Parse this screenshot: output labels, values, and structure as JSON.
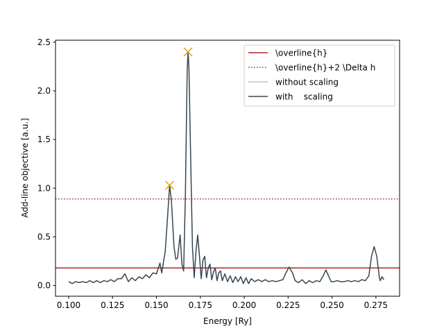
{
  "chart_data": {
    "type": "line",
    "xlabel": "Energy [Ry]",
    "ylabel": "Add-line objective [a.u.]",
    "xlim": [
      0.0925,
      0.2885
    ],
    "ylim": [
      -0.11,
      2.52
    ],
    "x_ticks": [
      0.1,
      0.125,
      0.15,
      0.175,
      0.2,
      0.225,
      0.25,
      0.275
    ],
    "x_tick_labels": [
      "0.100",
      "0.125",
      "0.150",
      "0.175",
      "0.200",
      "0.225",
      "0.250",
      "0.275"
    ],
    "y_ticks": [
      0.0,
      0.5,
      1.0,
      1.5,
      2.0,
      2.5
    ],
    "y_tick_labels": [
      "0.0",
      "0.5",
      "1.0",
      "1.5",
      "2.0",
      "2.5"
    ],
    "grid": false,
    "legend_position": "top-right",
    "hlines": [
      {
        "name": "\\overline{h}",
        "y": 0.18,
        "color": "#b22222",
        "style": "solid"
      },
      {
        "name": "\\overline{h}+2 \\Delta h",
        "y": 0.89,
        "color": "#b22222",
        "style": "dotted"
      }
    ],
    "series": [
      {
        "name": "without scaling",
        "color": "#c0c0c0",
        "points": []
      },
      {
        "name": "with    scaling",
        "color": "#36454f",
        "points": [
          [
            0.1,
            0.04
          ],
          [
            0.102,
            0.02
          ],
          [
            0.104,
            0.04
          ],
          [
            0.106,
            0.03
          ],
          [
            0.108,
            0.04
          ],
          [
            0.11,
            0.03
          ],
          [
            0.112,
            0.05
          ],
          [
            0.114,
            0.03
          ],
          [
            0.116,
            0.05
          ],
          [
            0.118,
            0.03
          ],
          [
            0.12,
            0.05
          ],
          [
            0.122,
            0.04
          ],
          [
            0.124,
            0.06
          ],
          [
            0.126,
            0.04
          ],
          [
            0.128,
            0.07
          ],
          [
            0.13,
            0.07
          ],
          [
            0.132,
            0.12
          ],
          [
            0.134,
            0.04
          ],
          [
            0.136,
            0.08
          ],
          [
            0.138,
            0.05
          ],
          [
            0.14,
            0.09
          ],
          [
            0.142,
            0.07
          ],
          [
            0.144,
            0.11
          ],
          [
            0.146,
            0.08
          ],
          [
            0.148,
            0.13
          ],
          [
            0.15,
            0.12
          ],
          [
            0.152,
            0.23
          ],
          [
            0.153,
            0.13
          ],
          [
            0.155,
            0.35
          ],
          [
            0.1565,
            0.75
          ],
          [
            0.1575,
            1.03
          ],
          [
            0.1585,
            0.88
          ],
          [
            0.16,
            0.4
          ],
          [
            0.161,
            0.27
          ],
          [
            0.162,
            0.28
          ],
          [
            0.1635,
            0.52
          ],
          [
            0.1645,
            0.22
          ],
          [
            0.1655,
            0.15
          ],
          [
            0.1665,
            0.95
          ],
          [
            0.1675,
            2.2
          ],
          [
            0.168,
            2.4
          ],
          [
            0.1685,
            2.25
          ],
          [
            0.1695,
            1.3
          ],
          [
            0.1705,
            0.4
          ],
          [
            0.1715,
            0.08
          ],
          [
            0.1725,
            0.35
          ],
          [
            0.1735,
            0.52
          ],
          [
            0.1745,
            0.3
          ],
          [
            0.1755,
            0.07
          ],
          [
            0.1765,
            0.26
          ],
          [
            0.1775,
            0.3
          ],
          [
            0.1785,
            0.08
          ],
          [
            0.1795,
            0.18
          ],
          [
            0.1805,
            0.22
          ],
          [
            0.1815,
            0.06
          ],
          [
            0.1825,
            0.14
          ],
          [
            0.1835,
            0.18
          ],
          [
            0.1845,
            0.05
          ],
          [
            0.1855,
            0.13
          ],
          [
            0.1865,
            0.15
          ],
          [
            0.1875,
            0.05
          ],
          [
            0.189,
            0.12
          ],
          [
            0.1905,
            0.04
          ],
          [
            0.192,
            0.1
          ],
          [
            0.1935,
            0.03
          ],
          [
            0.195,
            0.09
          ],
          [
            0.1965,
            0.04
          ],
          [
            0.198,
            0.09
          ],
          [
            0.1995,
            0.02
          ],
          [
            0.201,
            0.08
          ],
          [
            0.2025,
            0.02
          ],
          [
            0.204,
            0.07
          ],
          [
            0.206,
            0.04
          ],
          [
            0.208,
            0.06
          ],
          [
            0.21,
            0.04
          ],
          [
            0.212,
            0.06
          ],
          [
            0.214,
            0.04
          ],
          [
            0.216,
            0.05
          ],
          [
            0.218,
            0.04
          ],
          [
            0.22,
            0.05
          ],
          [
            0.222,
            0.06
          ],
          [
            0.2235,
            0.12
          ],
          [
            0.2255,
            0.19
          ],
          [
            0.2275,
            0.13
          ],
          [
            0.229,
            0.05
          ],
          [
            0.231,
            0.03
          ],
          [
            0.233,
            0.06
          ],
          [
            0.235,
            0.02
          ],
          [
            0.237,
            0.05
          ],
          [
            0.239,
            0.03
          ],
          [
            0.241,
            0.05
          ],
          [
            0.243,
            0.04
          ],
          [
            0.245,
            0.1
          ],
          [
            0.2465,
            0.16
          ],
          [
            0.248,
            0.1
          ],
          [
            0.2495,
            0.04
          ],
          [
            0.251,
            0.04
          ],
          [
            0.253,
            0.05
          ],
          [
            0.255,
            0.04
          ],
          [
            0.257,
            0.04
          ],
          [
            0.259,
            0.05
          ],
          [
            0.261,
            0.04
          ],
          [
            0.263,
            0.05
          ],
          [
            0.265,
            0.04
          ],
          [
            0.267,
            0.06
          ],
          [
            0.269,
            0.05
          ],
          [
            0.271,
            0.1
          ],
          [
            0.2725,
            0.3
          ],
          [
            0.274,
            0.4
          ],
          [
            0.2755,
            0.3
          ],
          [
            0.277,
            0.08
          ],
          [
            0.2775,
            0.05
          ],
          [
            0.2785,
            0.09
          ],
          [
            0.2795,
            0.06
          ]
        ]
      }
    ],
    "markers": [
      {
        "x": 0.1575,
        "y": 1.03,
        "symbol": "x",
        "color": "#daa520"
      },
      {
        "x": 0.168,
        "y": 2.4,
        "symbol": "x",
        "color": "#daa520"
      }
    ]
  }
}
